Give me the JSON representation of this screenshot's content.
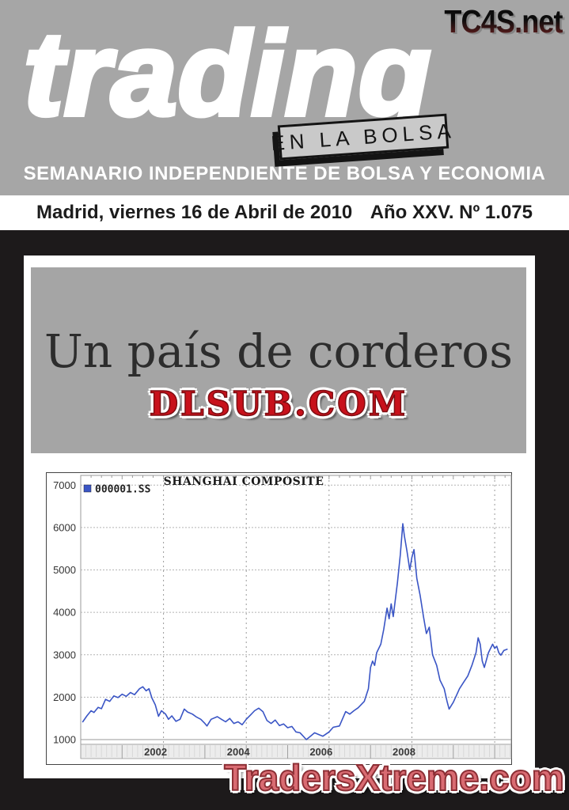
{
  "masthead": {
    "site": "TC4S.net",
    "logo": "trading",
    "tagline_box": "EN LA BOLSA",
    "subtitle": "SEMANARIO INDEPENDIENTE DE BOLSA Y ECONOMIA"
  },
  "dateline": {
    "left": "Madrid, viernes 16 de Abril de 2010",
    "right": "Año XXV. Nº 1.075"
  },
  "headline": {
    "title": "Un país de corderos",
    "watermark": "DLSUB.COM"
  },
  "footer": {
    "watermark": "TradersXtreme.com"
  },
  "colors": {
    "header_gray": "#a6a6a6",
    "box_gray": "#c9c9c9",
    "background_black": "#1d1a1b",
    "dlsub_red": "#c8111b",
    "footer_red": "#d96b72",
    "chart_line_blue": "#3a55c5"
  },
  "chart_data": {
    "type": "line",
    "title": "SHANGHAI COMPOSITE",
    "legend": [
      {
        "label": "000001.SS",
        "color": "#3a55c5"
      }
    ],
    "legend_position": "top-left",
    "grid": true,
    "xlabel": "",
    "ylabel": "",
    "x_range": [
      2000.0,
      2010.4
    ],
    "ylim": [
      1000,
      7117
    ],
    "yticks": [
      1000,
      2000,
      3000,
      4000,
      5000,
      6000,
      7000
    ],
    "xticks": [
      2002,
      2004,
      2006,
      2008
    ],
    "x_gridlines": [
      2002,
      2004,
      2006,
      2008,
      2010
    ],
    "series": [
      {
        "name": "000001.SS",
        "color": "#3a55c5",
        "points": [
          [
            2000.05,
            1420
          ],
          [
            2000.15,
            1560
          ],
          [
            2000.25,
            1680
          ],
          [
            2000.32,
            1640
          ],
          [
            2000.42,
            1760
          ],
          [
            2000.5,
            1730
          ],
          [
            2000.6,
            1950
          ],
          [
            2000.7,
            1900
          ],
          [
            2000.8,
            2030
          ],
          [
            2000.9,
            1990
          ],
          [
            2001.0,
            2070
          ],
          [
            2001.1,
            2020
          ],
          [
            2001.2,
            2110
          ],
          [
            2001.3,
            2060
          ],
          [
            2001.42,
            2200
          ],
          [
            2001.5,
            2245
          ],
          [
            2001.58,
            2150
          ],
          [
            2001.65,
            2200
          ],
          [
            2001.72,
            1980
          ],
          [
            2001.8,
            1820
          ],
          [
            2001.88,
            1550
          ],
          [
            2001.95,
            1680
          ],
          [
            2002.05,
            1600
          ],
          [
            2002.12,
            1480
          ],
          [
            2002.2,
            1560
          ],
          [
            2002.3,
            1430
          ],
          [
            2002.4,
            1480
          ],
          [
            2002.5,
            1720
          ],
          [
            2002.58,
            1650
          ],
          [
            2002.7,
            1600
          ],
          [
            2002.8,
            1530
          ],
          [
            2002.9,
            1480
          ],
          [
            2003.0,
            1380
          ],
          [
            2003.05,
            1320
          ],
          [
            2003.15,
            1480
          ],
          [
            2003.3,
            1540
          ],
          [
            2003.4,
            1480
          ],
          [
            2003.5,
            1420
          ],
          [
            2003.6,
            1500
          ],
          [
            2003.7,
            1380
          ],
          [
            2003.8,
            1420
          ],
          [
            2003.9,
            1350
          ],
          [
            2004.0,
            1480
          ],
          [
            2004.1,
            1580
          ],
          [
            2004.2,
            1680
          ],
          [
            2004.3,
            1740
          ],
          [
            2004.4,
            1660
          ],
          [
            2004.5,
            1450
          ],
          [
            2004.6,
            1380
          ],
          [
            2004.7,
            1460
          ],
          [
            2004.8,
            1330
          ],
          [
            2004.9,
            1370
          ],
          [
            2005.0,
            1280
          ],
          [
            2005.1,
            1310
          ],
          [
            2005.2,
            1180
          ],
          [
            2005.3,
            1160
          ],
          [
            2005.45,
            1000
          ],
          [
            2005.55,
            1080
          ],
          [
            2005.65,
            1160
          ],
          [
            2005.75,
            1120
          ],
          [
            2005.85,
            1080
          ],
          [
            2006.0,
            1180
          ],
          [
            2006.1,
            1290
          ],
          [
            2006.25,
            1320
          ],
          [
            2006.4,
            1660
          ],
          [
            2006.5,
            1600
          ],
          [
            2006.6,
            1680
          ],
          [
            2006.7,
            1750
          ],
          [
            2006.85,
            1900
          ],
          [
            2006.95,
            2200
          ],
          [
            2007.0,
            2700
          ],
          [
            2007.05,
            2850
          ],
          [
            2007.1,
            2750
          ],
          [
            2007.15,
            3050
          ],
          [
            2007.25,
            3250
          ],
          [
            2007.32,
            3600
          ],
          [
            2007.4,
            4100
          ],
          [
            2007.45,
            3850
          ],
          [
            2007.5,
            4200
          ],
          [
            2007.55,
            3900
          ],
          [
            2007.65,
            4700
          ],
          [
            2007.72,
            5350
          ],
          [
            2007.78,
            6090
          ],
          [
            2007.82,
            5800
          ],
          [
            2007.88,
            5450
          ],
          [
            2007.95,
            5000
          ],
          [
            2008.0,
            5300
          ],
          [
            2008.05,
            5480
          ],
          [
            2008.12,
            4800
          ],
          [
            2008.2,
            4400
          ],
          [
            2008.28,
            3900
          ],
          [
            2008.35,
            3500
          ],
          [
            2008.42,
            3650
          ],
          [
            2008.5,
            3000
          ],
          [
            2008.6,
            2750
          ],
          [
            2008.68,
            2400
          ],
          [
            2008.78,
            2200
          ],
          [
            2008.85,
            1900
          ],
          [
            2008.9,
            1720
          ],
          [
            2009.0,
            1880
          ],
          [
            2009.08,
            2050
          ],
          [
            2009.15,
            2200
          ],
          [
            2009.25,
            2350
          ],
          [
            2009.35,
            2500
          ],
          [
            2009.45,
            2750
          ],
          [
            2009.5,
            2900
          ],
          [
            2009.55,
            3050
          ],
          [
            2009.6,
            3400
          ],
          [
            2009.65,
            3250
          ],
          [
            2009.7,
            2850
          ],
          [
            2009.75,
            2700
          ],
          [
            2009.85,
            3050
          ],
          [
            2009.95,
            3250
          ],
          [
            2010.0,
            3150
          ],
          [
            2010.05,
            3200
          ],
          [
            2010.1,
            3050
          ],
          [
            2010.15,
            2990
          ],
          [
            2010.22,
            3100
          ],
          [
            2010.3,
            3130
          ]
        ]
      }
    ]
  }
}
